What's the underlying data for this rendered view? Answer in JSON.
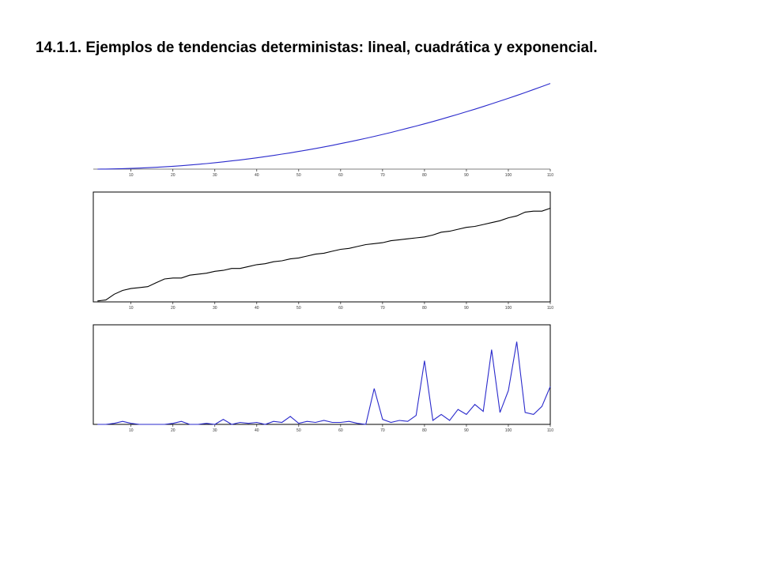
{
  "page_title": "14.1.1. Ejemplos de tendencias deterministas: lineal, cuadrática y exponencial.",
  "chart_data": [
    {
      "type": "line",
      "frame": false,
      "color": "#2a2acc",
      "x": [
        2,
        4,
        6,
        8,
        10,
        12,
        14,
        16,
        18,
        20,
        22,
        24,
        26,
        28,
        30,
        32,
        34,
        36,
        38,
        40,
        42,
        44,
        46,
        48,
        50,
        52,
        54,
        56,
        58,
        60,
        62,
        64,
        66,
        68,
        70,
        72,
        74,
        76,
        78,
        80,
        82,
        84,
        86,
        88,
        90,
        92,
        94,
        96,
        98,
        100,
        102,
        104,
        106,
        108,
        110
      ],
      "values": [
        4,
        16,
        36,
        64,
        100,
        144,
        196,
        256,
        324,
        400,
        484,
        576,
        676,
        784,
        900,
        1024,
        1156,
        1296,
        1444,
        1600,
        1764,
        1936,
        2116,
        2304,
        2500,
        2704,
        2916,
        3136,
        3364,
        3600,
        3844,
        4096,
        4356,
        4624,
        4900,
        5184,
        5476,
        5776,
        6084,
        6400,
        6724,
        7056,
        7396,
        7744,
        8100,
        8464,
        8836,
        9216,
        9604,
        10000,
        10404,
        10816,
        11236,
        11664,
        12100
      ],
      "xlim": [
        1,
        110
      ],
      "ylim": [
        0,
        12500
      ],
      "xticks": [
        10,
        20,
        30,
        40,
        50,
        60,
        70,
        80,
        90,
        100,
        110
      ]
    },
    {
      "type": "line",
      "frame": true,
      "color": "#000000",
      "x": [
        2,
        4,
        6,
        8,
        10,
        12,
        14,
        16,
        18,
        20,
        22,
        24,
        26,
        28,
        30,
        32,
        34,
        36,
        38,
        40,
        42,
        44,
        46,
        48,
        50,
        52,
        54,
        56,
        58,
        60,
        62,
        64,
        66,
        68,
        70,
        72,
        74,
        76,
        78,
        80,
        82,
        84,
        86,
        88,
        90,
        92,
        94,
        96,
        98,
        100,
        102,
        104,
        106,
        108,
        110
      ],
      "values": [
        1,
        2,
        8,
        12,
        14,
        15,
        16,
        20,
        24,
        25,
        25,
        28,
        29,
        30,
        32,
        33,
        35,
        35,
        37,
        39,
        40,
        42,
        43,
        45,
        46,
        48,
        50,
        51,
        53,
        55,
        56,
        58,
        60,
        61,
        62,
        64,
        65,
        66,
        67,
        68,
        70,
        73,
        74,
        76,
        78,
        79,
        81,
        83,
        85,
        88,
        90,
        94,
        95,
        95,
        98
      ],
      "xlim": [
        1,
        110
      ],
      "ylim": [
        0,
        115
      ],
      "xticks": [
        10,
        20,
        30,
        40,
        50,
        60,
        70,
        80,
        90,
        100,
        110
      ]
    },
    {
      "type": "line",
      "frame": true,
      "color": "#2a2acc",
      "x": [
        2,
        4,
        6,
        8,
        10,
        12,
        14,
        16,
        18,
        20,
        22,
        24,
        26,
        28,
        30,
        32,
        34,
        36,
        38,
        40,
        42,
        44,
        46,
        48,
        50,
        52,
        54,
        56,
        58,
        60,
        62,
        64,
        66,
        68,
        70,
        72,
        74,
        76,
        78,
        80,
        82,
        84,
        86,
        88,
        90,
        92,
        94,
        96,
        98,
        100,
        102,
        104,
        106,
        108,
        110
      ],
      "values": [
        0,
        0,
        1,
        3,
        1,
        0,
        0,
        0,
        0,
        1,
        3,
        0,
        0,
        1,
        0,
        5,
        0,
        2,
        1,
        2,
        0,
        3,
        2,
        8,
        1,
        3,
        2,
        4,
        2,
        2,
        3,
        1,
        0,
        36,
        5,
        2,
        4,
        3,
        9,
        64,
        4,
        10,
        4,
        15,
        10,
        20,
        13,
        75,
        12,
        34,
        83,
        12,
        10,
        18,
        38
      ],
      "xlim": [
        1,
        110
      ],
      "ylim": [
        0,
        100
      ],
      "xticks": [
        10,
        20,
        30,
        40,
        50,
        60,
        70,
        80,
        90,
        100,
        110
      ]
    }
  ]
}
